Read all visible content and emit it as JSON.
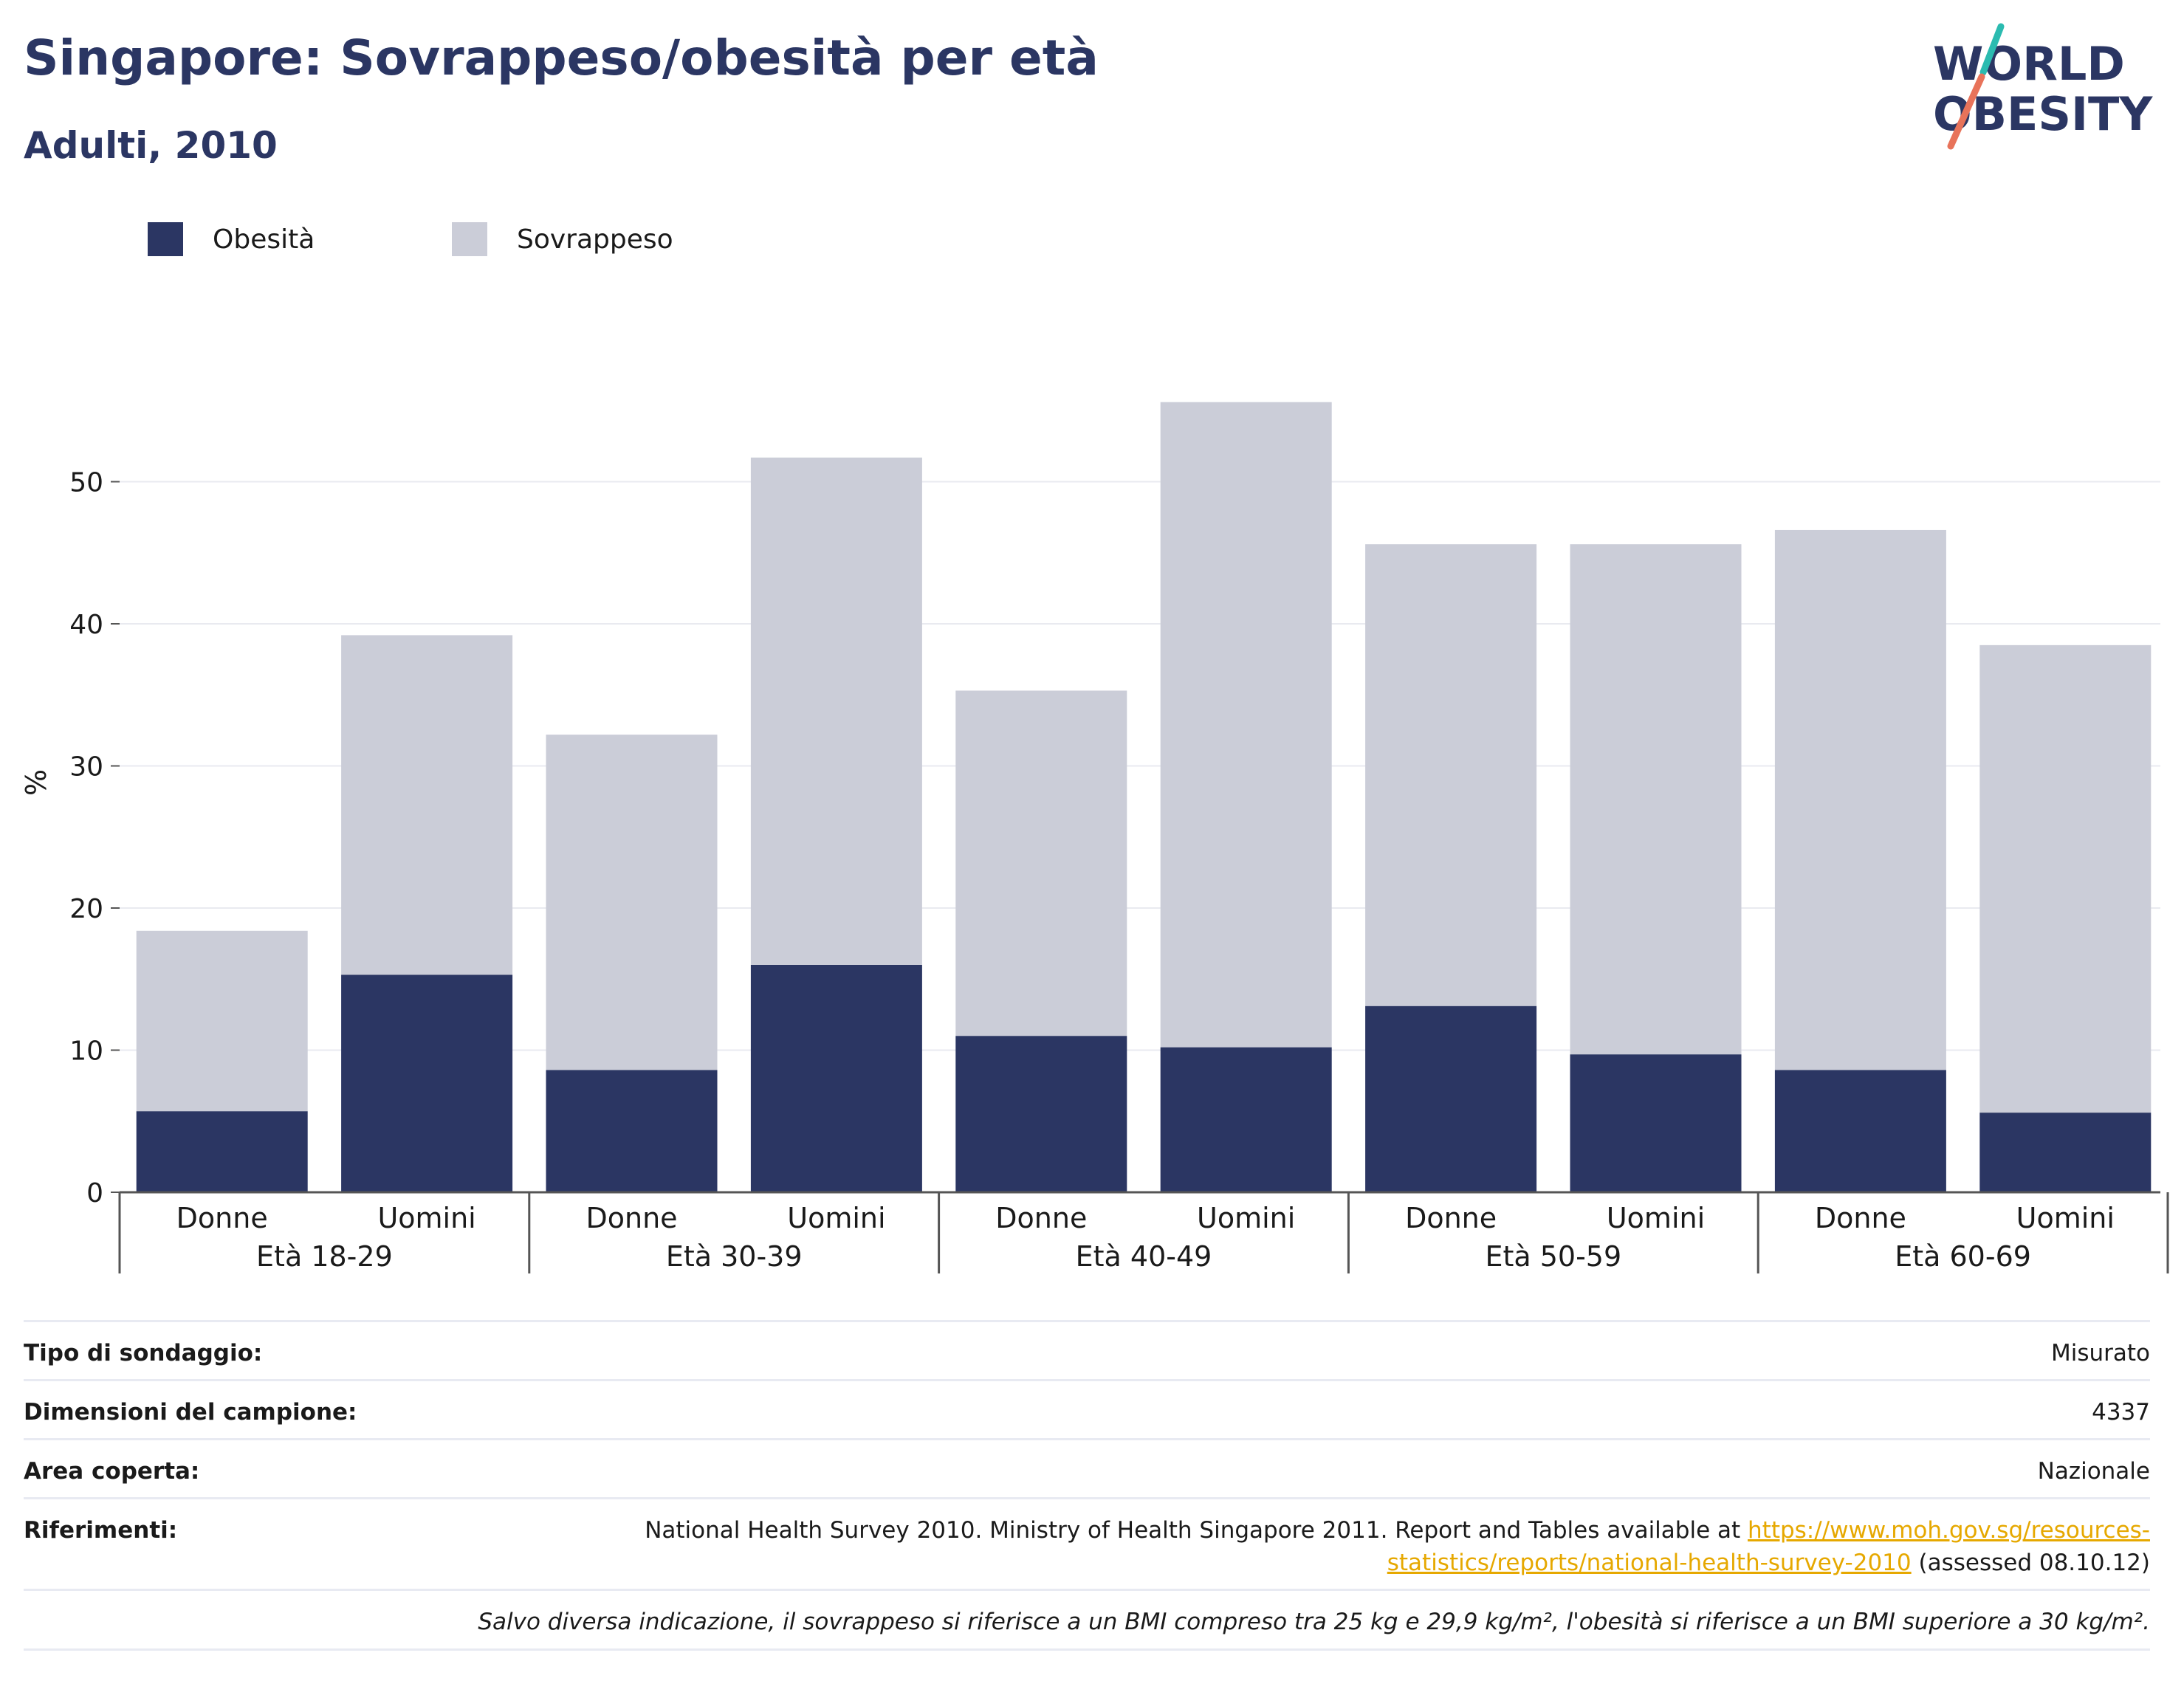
{
  "header": {
    "title": "Singapore: Sovrappeso/obesità per età",
    "subtitle": "Adulti, 2010"
  },
  "logo": {
    "line1": "WORLD",
    "line2": "OBESITY"
  },
  "colors": {
    "obesity": "#2b3663",
    "overweight": "#cbcdd8",
    "title": "#2b3663",
    "link": "#e6a800",
    "logo_teal": "#2bbbb0",
    "logo_coral": "#e8735a"
  },
  "legend": [
    {
      "label": "Obesità",
      "color": "#2b3663"
    },
    {
      "label": "Sovrappeso",
      "color": "#cbcdd8"
    }
  ],
  "chart_data": {
    "type": "bar",
    "stacked": true,
    "ylabel": "%",
    "ylim": [
      0,
      58
    ],
    "yticks": [
      0,
      10,
      20,
      30,
      40,
      50
    ],
    "grid": true,
    "legend_position": "top-left",
    "categories": [
      "Donne",
      "Uomini",
      "Donne",
      "Uomini",
      "Donne",
      "Uomini",
      "Donne",
      "Uomini",
      "Donne",
      "Uomini"
    ],
    "groups": [
      "Età 18-29",
      "Età 30-39",
      "Età 40-49",
      "Età 50-59",
      "Età 60-69"
    ],
    "series": [
      {
        "name": "Obesità",
        "color": "#2b3663",
        "values": [
          5.7,
          15.3,
          8.6,
          16.0,
          11.0,
          10.2,
          13.1,
          9.7,
          8.6,
          5.6
        ]
      },
      {
        "name": "Sovrappeso",
        "color": "#cbcdd8",
        "values": [
          12.7,
          23.9,
          23.6,
          35.7,
          24.3,
          45.4,
          32.5,
          35.9,
          38.0,
          32.9
        ]
      }
    ]
  },
  "info": {
    "survey_type": {
      "label": "Tipo di sondaggio:",
      "value": "Misurato"
    },
    "sample_size": {
      "label": "Dimensioni del campione:",
      "value": "4337"
    },
    "area": {
      "label": "Area coperta:",
      "value": "Nazionale"
    },
    "references": {
      "label": "Riferimenti:",
      "text": "National Health Survey 2010. Ministry of Health Singapore 2011. Report and Tables available at ",
      "link": "https://www.moh.gov.sg/resources-statistics/reports/national-health-survey-2010",
      "suffix": " (assessed 08.10.12)"
    },
    "footnote": "Salvo diversa indicazione, il sovrappeso si riferisce a un BMI compreso tra 25 kg e 29,9 kg/m², l'obesità si riferisce a un BMI superiore a 30 kg/m²."
  }
}
